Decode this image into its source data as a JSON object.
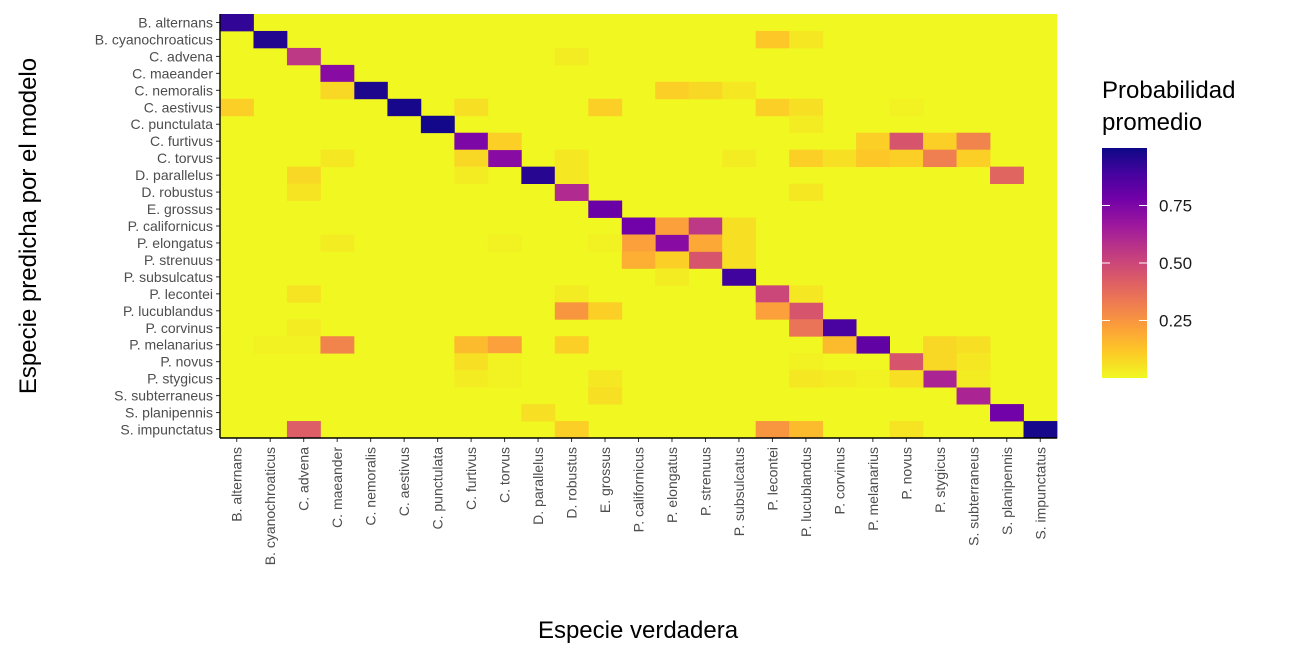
{
  "chart_data": {
    "type": "heatmap",
    "xlabel": "Especie verdadera",
    "ylabel": "Especie predicha por el modelo",
    "legend": {
      "title": [
        "Probabilidad",
        "promedio"
      ],
      "ticks": [
        0.25,
        0.5,
        0.75
      ],
      "tick_labels": [
        "0.25",
        "0.50",
        "0.75"
      ],
      "range": [
        0,
        1
      ],
      "position": "right"
    },
    "colorscale": [
      "#f0f921",
      "#fdca26",
      "#fb9f3a",
      "#ed7953",
      "#d8576b",
      "#bd3786",
      "#9c179e",
      "#7201a8",
      "#46039f",
      "#0d0887"
    ],
    "species": [
      "B. alternans",
      "B. cyanochroaticus",
      "C. advena",
      "C. maeander",
      "C. nemoralis",
      "C. aestivus",
      "C. punctulata",
      "C. furtivus",
      "C. torvus",
      "D. parallelus",
      "D. robustus",
      "E. grossus",
      "P. californicus",
      "P. elongatus",
      "P. strenuus",
      "P. subsulcatus",
      "P. lecontei",
      "P. lucublandus",
      "P. corvinus",
      "P. melanarius",
      "P. novus",
      "P. stygicus",
      "S. subterraneus",
      "S. planipennis",
      "S. impunctatus"
    ],
    "cells": [
      {
        "true": "B. alternans",
        "pred": "B. alternans",
        "p": 0.93
      },
      {
        "true": "B. cyanochroaticus",
        "pred": "B. cyanochroaticus",
        "p": 0.96
      },
      {
        "true": "C. advena",
        "pred": "C. advena",
        "p": 0.55
      },
      {
        "true": "C. maeander",
        "pred": "C. maeander",
        "p": 0.72
      },
      {
        "true": "C. nemoralis",
        "pred": "C. nemoralis",
        "p": 0.97
      },
      {
        "true": "C. aestivus",
        "pred": "C. aestivus",
        "p": 0.98
      },
      {
        "true": "C. punctulata",
        "pred": "C. punctulata",
        "p": 0.99
      },
      {
        "true": "C. furtivus",
        "pred": "C. furtivus",
        "p": 0.75
      },
      {
        "true": "C. torvus",
        "pred": "C. torvus",
        "p": 0.72
      },
      {
        "true": "D. parallelus",
        "pred": "D. parallelus",
        "p": 0.95
      },
      {
        "true": "D. robustus",
        "pred": "D. robustus",
        "p": 0.6
      },
      {
        "true": "E. grossus",
        "pred": "E. grossus",
        "p": 0.8
      },
      {
        "true": "P. californicus",
        "pred": "P. californicus",
        "p": 0.78
      },
      {
        "true": "P. elongatus",
        "pred": "P. elongatus",
        "p": 0.72
      },
      {
        "true": "P. strenuus",
        "pred": "P. strenuus",
        "p": 0.45
      },
      {
        "true": "P. subsulcatus",
        "pred": "P. subsulcatus",
        "p": 0.9
      },
      {
        "true": "P. lecontei",
        "pred": "P. lecontei",
        "p": 0.5
      },
      {
        "true": "P. lucublandus",
        "pred": "P. lucublandus",
        "p": 0.45
      },
      {
        "true": "P. corvinus",
        "pred": "P. corvinus",
        "p": 0.88
      },
      {
        "true": "P. melanarius",
        "pred": "P. melanarius",
        "p": 0.82
      },
      {
        "true": "P. novus",
        "pred": "P. novus",
        "p": 0.45
      },
      {
        "true": "P. stygicus",
        "pred": "P. stygicus",
        "p": 0.62
      },
      {
        "true": "S. subterraneus",
        "pred": "S. subterraneus",
        "p": 0.62
      },
      {
        "true": "S. planipennis",
        "pred": "S. planipennis",
        "p": 0.78
      },
      {
        "true": "S. impunctatus",
        "pred": "S. impunctatus",
        "p": 0.98
      },
      {
        "true": "P. lecontei",
        "pred": "B. cyanochroaticus",
        "p": 0.12
      },
      {
        "true": "P. lucublandus",
        "pred": "B. cyanochroaticus",
        "p": 0.04
      },
      {
        "true": "D. robustus",
        "pred": "C. advena",
        "p": 0.03
      },
      {
        "true": "C. maeander",
        "pred": "C. nemoralis",
        "p": 0.08
      },
      {
        "true": "P. elongatus",
        "pred": "C. nemoralis",
        "p": 0.1
      },
      {
        "true": "P. strenuus",
        "pred": "C. nemoralis",
        "p": 0.08
      },
      {
        "true": "P. subsulcatus",
        "pred": "C. nemoralis",
        "p": 0.04
      },
      {
        "true": "B. alternans",
        "pred": "C. aestivus",
        "p": 0.1
      },
      {
        "true": "C. furtivus",
        "pred": "C. aestivus",
        "p": 0.06
      },
      {
        "true": "E. grossus",
        "pred": "C. aestivus",
        "p": 0.1
      },
      {
        "true": "P. lecontei",
        "pred": "C. aestivus",
        "p": 0.1
      },
      {
        "true": "P. lucublandus",
        "pred": "C. aestivus",
        "p": 0.06
      },
      {
        "true": "P. novus",
        "pred": "C. aestivus",
        "p": 0.02
      },
      {
        "true": "P. lucublandus",
        "pred": "C. punctulata",
        "p": 0.03
      },
      {
        "true": "C. torvus",
        "pred": "C. furtivus",
        "p": 0.1
      },
      {
        "true": "P. melanarius",
        "pred": "C. furtivus",
        "p": 0.1
      },
      {
        "true": "P. novus",
        "pred": "C. furtivus",
        "p": 0.45
      },
      {
        "true": "P. stygicus",
        "pred": "C. furtivus",
        "p": 0.1
      },
      {
        "true": "S. subterraneus",
        "pred": "C. furtivus",
        "p": 0.3
      },
      {
        "true": "C. maeander",
        "pred": "C. torvus",
        "p": 0.04
      },
      {
        "true": "C. furtivus",
        "pred": "C. torvus",
        "p": 0.08
      },
      {
        "true": "D. robustus",
        "pred": "C. torvus",
        "p": 0.04
      },
      {
        "true": "P. subsulcatus",
        "pred": "C. torvus",
        "p": 0.03
      },
      {
        "true": "P. lucublandus",
        "pred": "C. torvus",
        "p": 0.1
      },
      {
        "true": "P. corvinus",
        "pred": "C. torvus",
        "p": 0.06
      },
      {
        "true": "P. melanarius",
        "pred": "C. torvus",
        "p": 0.12
      },
      {
        "true": "P. novus",
        "pred": "C. torvus",
        "p": 0.1
      },
      {
        "true": "P. stygicus",
        "pred": "C. torvus",
        "p": 0.32
      },
      {
        "true": "S. subterraneus",
        "pred": "C. torvus",
        "p": 0.1
      },
      {
        "true": "C. advena",
        "pred": "D. parallelus",
        "p": 0.08
      },
      {
        "true": "C. furtivus",
        "pred": "D. parallelus",
        "p": 0.03
      },
      {
        "true": "D. robustus",
        "pred": "D. parallelus",
        "p": 0.04
      },
      {
        "true": "S. planipennis",
        "pred": "D. parallelus",
        "p": 0.4
      },
      {
        "true": "C. advena",
        "pred": "D. robustus",
        "p": 0.05
      },
      {
        "true": "P. lucublandus",
        "pred": "D. robustus",
        "p": 0.04
      },
      {
        "true": "P. elongatus",
        "pred": "P. californicus",
        "p": 0.22
      },
      {
        "true": "P. strenuus",
        "pred": "P. californicus",
        "p": 0.55
      },
      {
        "true": "P. subsulcatus",
        "pred": "P. californicus",
        "p": 0.06
      },
      {
        "true": "P. californicus",
        "pred": "P. elongatus",
        "p": 0.22
      },
      {
        "true": "P. strenuus",
        "pred": "P. elongatus",
        "p": 0.2
      },
      {
        "true": "P. subsulcatus",
        "pred": "P. elongatus",
        "p": 0.06
      },
      {
        "true": "C. maeander",
        "pred": "P. elongatus",
        "p": 0.03
      },
      {
        "true": "C. torvus",
        "pred": "P. elongatus",
        "p": 0.02
      },
      {
        "true": "E. grossus",
        "pred": "P. elongatus",
        "p": 0.02
      },
      {
        "true": "P. californicus",
        "pred": "P. strenuus",
        "p": 0.18
      },
      {
        "true": "P. elongatus",
        "pred": "P. strenuus",
        "p": 0.1
      },
      {
        "true": "P. subsulcatus",
        "pred": "P. strenuus",
        "p": 0.06
      },
      {
        "true": "P. elongatus",
        "pred": "P. subsulcatus",
        "p": 0.03
      },
      {
        "true": "C. advena",
        "pred": "P. lecontei",
        "p": 0.05
      },
      {
        "true": "D. robustus",
        "pred": "P. lecontei",
        "p": 0.03
      },
      {
        "true": "P. lucublandus",
        "pred": "P. lecontei",
        "p": 0.04
      },
      {
        "true": "D. robustus",
        "pred": "P. lucublandus",
        "p": 0.25
      },
      {
        "true": "E. grossus",
        "pred": "P. lucublandus",
        "p": 0.1
      },
      {
        "true": "P. lecontei",
        "pred": "P. lucublandus",
        "p": 0.22
      },
      {
        "true": "C. advena",
        "pred": "P. corvinus",
        "p": 0.03
      },
      {
        "true": "P. lucublandus",
        "pred": "P. corvinus",
        "p": 0.35
      },
      {
        "true": "B. cyanochroaticus",
        "pred": "P. melanarius",
        "p": 0.02
      },
      {
        "true": "C. advena",
        "pred": "P. melanarius",
        "p": 0.02
      },
      {
        "true": "C. maeander",
        "pred": "P. melanarius",
        "p": 0.3
      },
      {
        "true": "C. furtivus",
        "pred": "P. melanarius",
        "p": 0.15
      },
      {
        "true": "C. torvus",
        "pred": "P. melanarius",
        "p": 0.22
      },
      {
        "true": "D. robustus",
        "pred": "P. melanarius",
        "p": 0.1
      },
      {
        "true": "P. corvinus",
        "pred": "P. melanarius",
        "p": 0.15
      },
      {
        "true": "P. stygicus",
        "pred": "P. melanarius",
        "p": 0.08
      },
      {
        "true": "S. subterraneus",
        "pred": "P. melanarius",
        "p": 0.06
      },
      {
        "true": "C. furtivus",
        "pred": "P. novus",
        "p": 0.06
      },
      {
        "true": "C. torvus",
        "pred": "P. novus",
        "p": 0.02
      },
      {
        "true": "P. lucublandus",
        "pred": "P. novus",
        "p": 0.02
      },
      {
        "true": "P. stygicus",
        "pred": "P. novus",
        "p": 0.08
      },
      {
        "true": "S. subterraneus",
        "pred": "P. novus",
        "p": 0.04
      },
      {
        "true": "C. furtivus",
        "pred": "P. stygicus",
        "p": 0.03
      },
      {
        "true": "C. torvus",
        "pred": "P. stygicus",
        "p": 0.02
      },
      {
        "true": "E. grossus",
        "pred": "P. stygicus",
        "p": 0.04
      },
      {
        "true": "P. lucublandus",
        "pred": "P. stygicus",
        "p": 0.04
      },
      {
        "true": "P. corvinus",
        "pred": "P. stygicus",
        "p": 0.03
      },
      {
        "true": "P. melanarius",
        "pred": "P. stygicus",
        "p": 0.02
      },
      {
        "true": "P. novus",
        "pred": "P. stygicus",
        "p": 0.06
      },
      {
        "true": "S. subterraneus",
        "pred": "P. stygicus",
        "p": 0.03
      },
      {
        "true": "E. grossus",
        "pred": "S. subterraneus",
        "p": 0.06
      },
      {
        "true": "D. parallelus",
        "pred": "S. planipennis",
        "p": 0.06
      },
      {
        "true": "C. advena",
        "pred": "S. impunctatus",
        "p": 0.42
      },
      {
        "true": "D. robustus",
        "pred": "S. impunctatus",
        "p": 0.1
      },
      {
        "true": "P. lecontei",
        "pred": "S. impunctatus",
        "p": 0.25
      },
      {
        "true": "P. lucublandus",
        "pred": "S. impunctatus",
        "p": 0.15
      },
      {
        "true": "P. novus",
        "pred": "S. impunctatus",
        "p": 0.05
      }
    ]
  }
}
